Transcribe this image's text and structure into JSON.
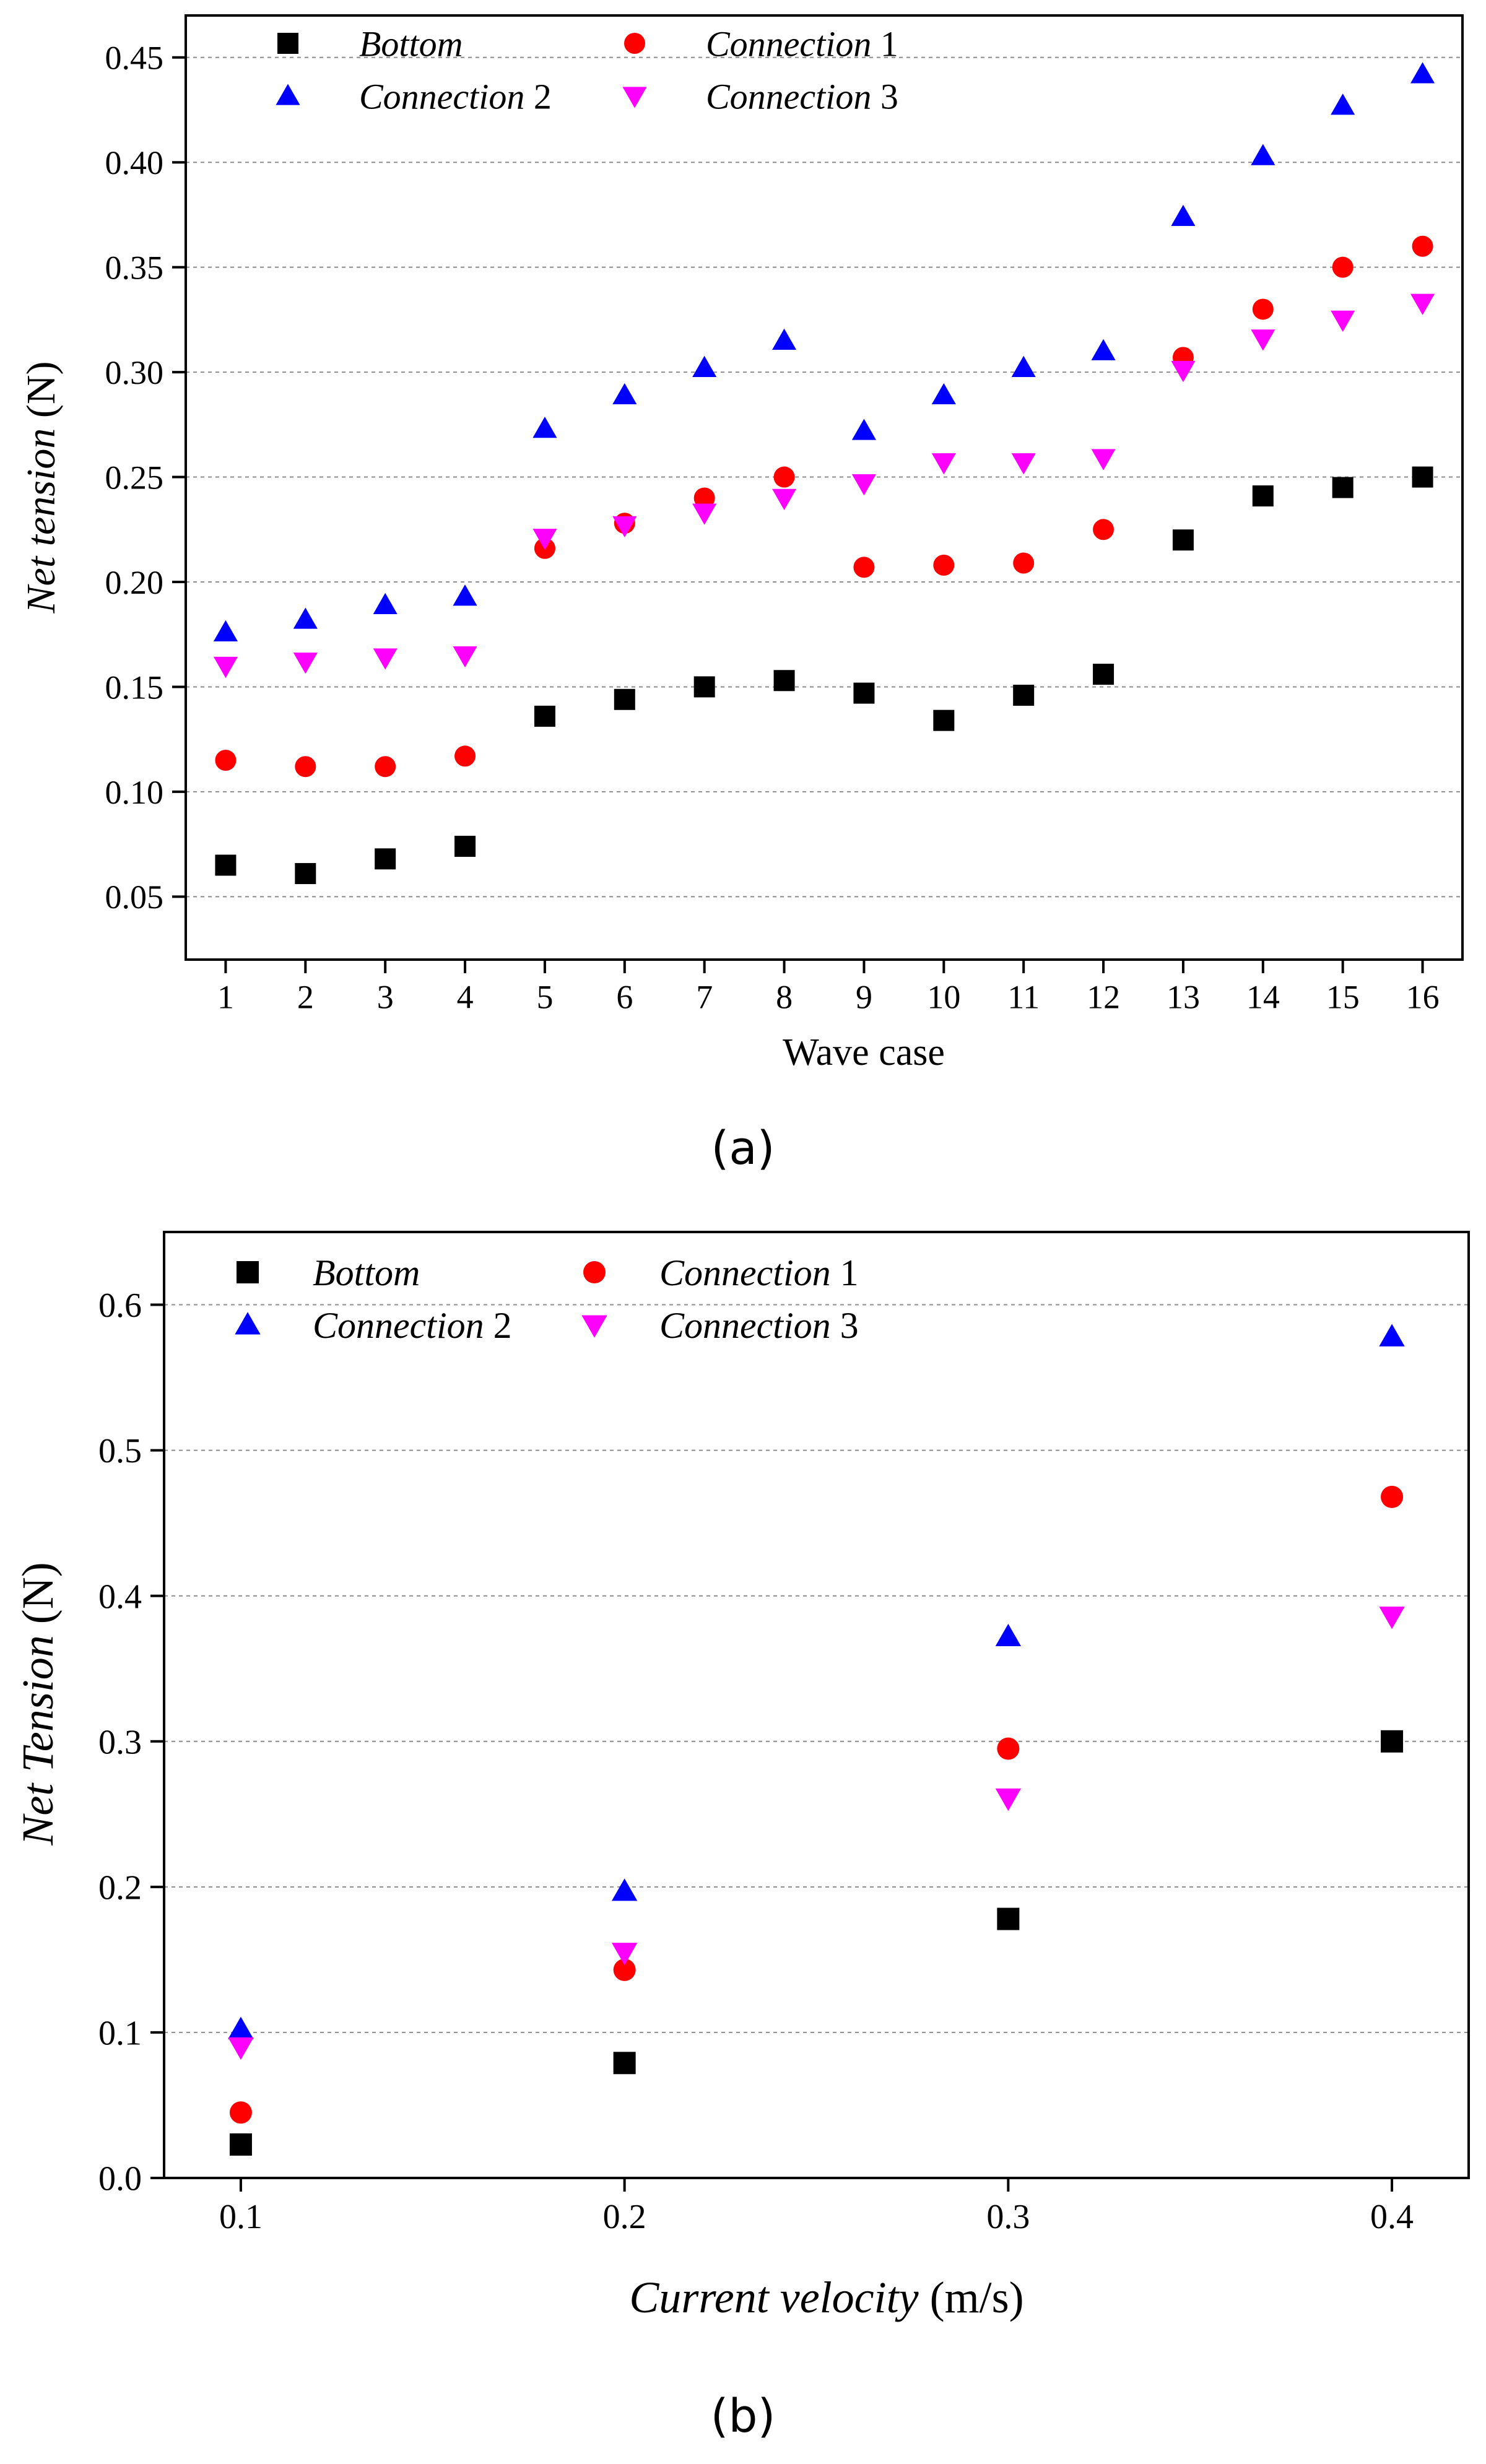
{
  "chart_data": [
    {
      "type": "scatter",
      "panel_label": "(a)",
      "xlabel": "Wave case",
      "ylabel": {
        "italic": "Net tension",
        "plain": " (N)"
      },
      "x": [
        1,
        2,
        3,
        4,
        5,
        6,
        7,
        8,
        9,
        10,
        11,
        12,
        13,
        14,
        15,
        16
      ],
      "xticks": [
        "1",
        "2",
        "3",
        "4",
        "5",
        "6",
        "7",
        "8",
        "9",
        "10",
        "11",
        "12",
        "13",
        "14",
        "15",
        "16"
      ],
      "xlim": [
        0.5,
        16.5
      ],
      "ylim": [
        0.02,
        0.47
      ],
      "yticks": [
        "0.05",
        "0.10",
        "0.15",
        "0.20",
        "0.25",
        "0.30",
        "0.35",
        "0.40",
        "0.45"
      ],
      "grid": "horizontal dashed",
      "legend_position": "top-left",
      "series": [
        {
          "name": "Bottom",
          "name_num": "",
          "marker": "square",
          "color": "#000000",
          "values": [
            0.065,
            0.061,
            0.068,
            0.074,
            0.136,
            0.144,
            0.15,
            0.153,
            0.147,
            0.134,
            0.146,
            0.156,
            0.22,
            0.241,
            0.245,
            0.25
          ]
        },
        {
          "name": "Connection",
          "name_num": " 1",
          "marker": "circle",
          "color": "#ff0000",
          "values": [
            0.115,
            0.112,
            0.112,
            0.117,
            0.216,
            0.228,
            0.24,
            0.25,
            0.207,
            0.208,
            0.209,
            0.225,
            0.307,
            0.33,
            0.35,
            0.36
          ]
        },
        {
          "name": "Connection",
          "name_num": " 2",
          "marker": "triangle-up",
          "color": "#0000ff",
          "values": [
            0.176,
            0.182,
            0.189,
            0.193,
            0.273,
            0.289,
            0.302,
            0.315,
            0.272,
            0.289,
            0.302,
            0.31,
            0.374,
            0.403,
            0.427,
            0.442
          ]
        },
        {
          "name": "Connection",
          "name_num": " 3",
          "marker": "triangle-down",
          "color": "#ff00ff",
          "values": [
            0.16,
            0.162,
            0.164,
            0.165,
            0.221,
            0.227,
            0.233,
            0.24,
            0.247,
            0.257,
            0.257,
            0.259,
            0.301,
            0.316,
            0.325,
            0.333
          ]
        }
      ]
    },
    {
      "type": "scatter",
      "panel_label": "(b)",
      "xlabel": {
        "italic": "Current velocity",
        "plain": " (m/s)"
      },
      "ylabel": {
        "italic": "Net Tension",
        "plain": " (N)"
      },
      "x": [
        0.1,
        0.2,
        0.3,
        0.4
      ],
      "xticks": [
        "0.1",
        "0.2",
        "0.3",
        "0.4"
      ],
      "xlim": [
        0.08,
        0.42
      ],
      "ylim": [
        0.0,
        0.65
      ],
      "yticks": [
        "0.0",
        "0.1",
        "0.2",
        "0.3",
        "0.4",
        "0.5",
        "0.6"
      ],
      "grid": "horizontal dashed",
      "legend_position": "top-left",
      "series": [
        {
          "name": "Bottom",
          "name_num": "",
          "marker": "square",
          "color": "#000000",
          "values": [
            0.023,
            0.079,
            0.178,
            0.3
          ]
        },
        {
          "name": "Connection",
          "name_num": " 1",
          "marker": "circle",
          "color": "#ff0000",
          "values": [
            0.045,
            0.143,
            0.295,
            0.468
          ]
        },
        {
          "name": "Connection",
          "name_num": " 2",
          "marker": "triangle-up",
          "color": "#0000ff",
          "values": [
            0.102,
            0.197,
            0.372,
            0.578
          ]
        },
        {
          "name": "Connection",
          "name_num": " 3",
          "marker": "triangle-down",
          "color": "#ff00ff",
          "values": [
            0.09,
            0.155,
            0.261,
            0.386
          ]
        }
      ]
    }
  ]
}
